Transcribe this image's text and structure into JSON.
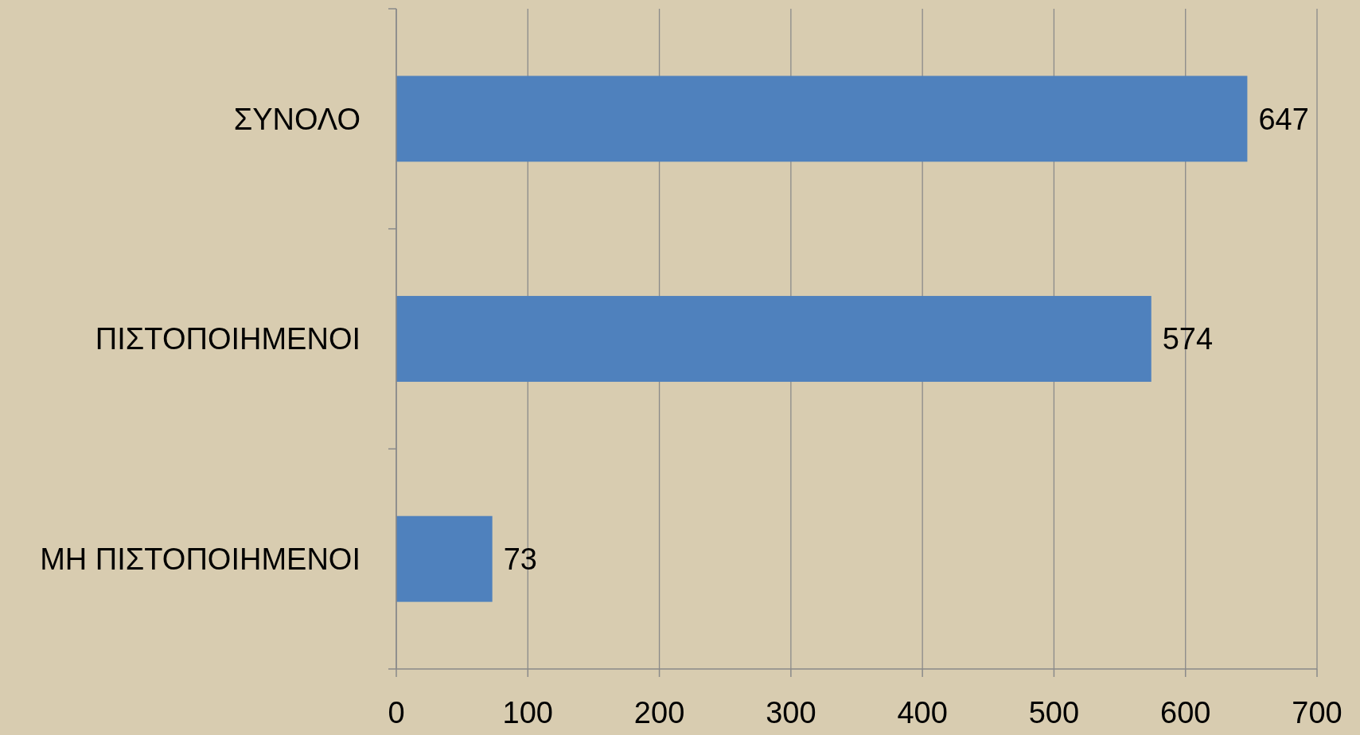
{
  "chart_data": {
    "type": "bar",
    "orientation": "horizontal",
    "categories": [
      "ΣΥΝΟΛΟ",
      "ΠΙΣΤΟΠΟΙΗΜΕΝΟΙ",
      "ΜΗ ΠΙΣΤΟΠΟΙΗΜΕΝΟΙ"
    ],
    "values": [
      647,
      574,
      73
    ],
    "color": "#4f81bd",
    "xlim": [
      0,
      700
    ],
    "xticks": [
      0,
      100,
      200,
      300,
      400,
      500,
      600,
      700
    ],
    "grid": "x",
    "data_labels": true
  }
}
